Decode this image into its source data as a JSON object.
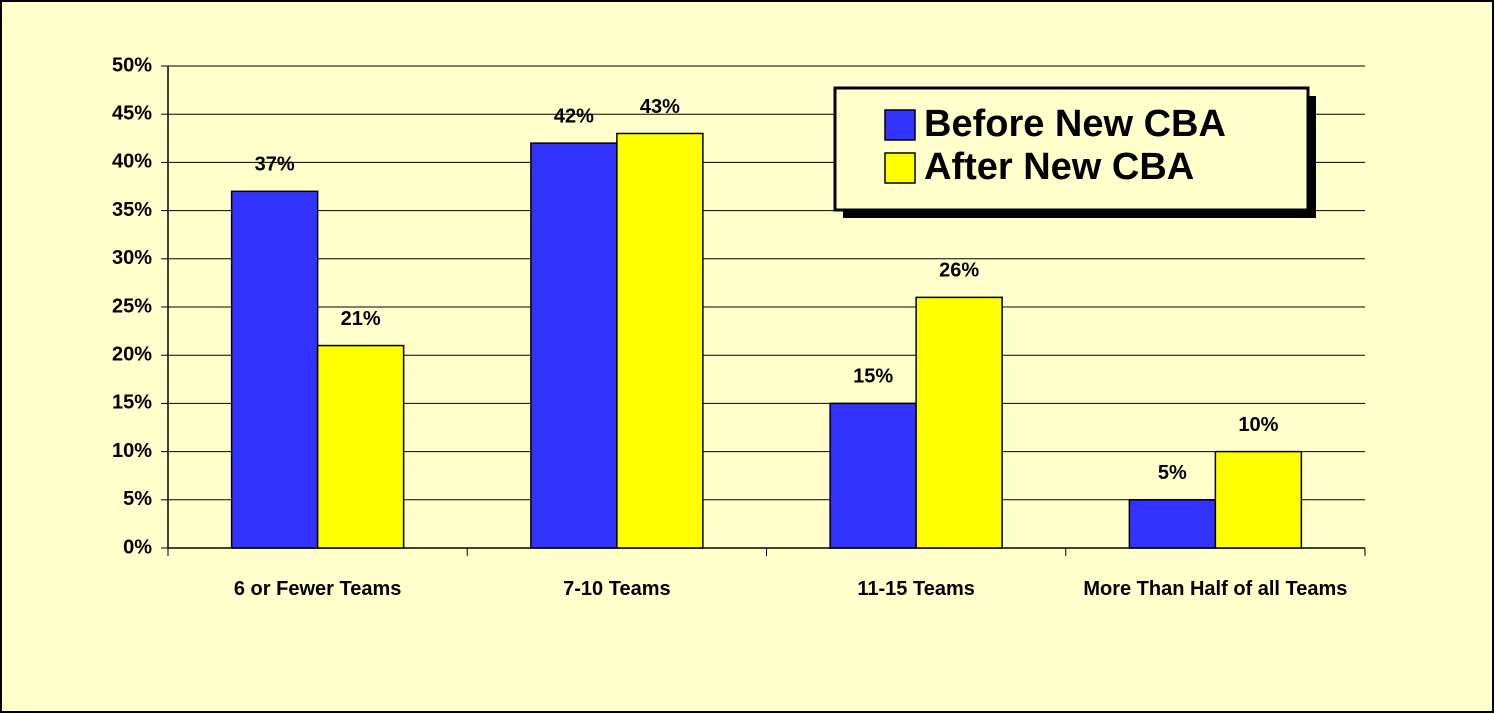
{
  "chart_data": {
    "type": "bar",
    "categories": [
      "6 or Fewer Teams",
      "7-10 Teams",
      "11-15 Teams",
      "More Than Half of all Teams"
    ],
    "series": [
      {
        "name": "Before New CBA",
        "color": "#3333ff",
        "values": [
          37,
          42,
          15,
          5
        ],
        "value_labels": [
          "37%",
          "42%",
          "15%",
          "5%"
        ]
      },
      {
        "name": "After New CBA",
        "color": "#ffff00",
        "values": [
          21,
          43,
          26,
          10
        ],
        "value_labels": [
          "21%",
          "43%",
          "26%",
          "10%"
        ]
      }
    ],
    "ylim": [
      0,
      50
    ],
    "yticks": [
      {
        "value": 0,
        "label": "0%"
      },
      {
        "value": 5,
        "label": "5%"
      },
      {
        "value": 10,
        "label": "10%"
      },
      {
        "value": 15,
        "label": "15%"
      },
      {
        "value": 20,
        "label": "20%"
      },
      {
        "value": 25,
        "label": "25%"
      },
      {
        "value": 30,
        "label": "30%"
      },
      {
        "value": 35,
        "label": "35%"
      },
      {
        "value": 40,
        "label": "40%"
      },
      {
        "value": 45,
        "label": "45%"
      },
      {
        "value": 50,
        "label": "50%"
      }
    ],
    "grid": true,
    "legend": "top-right"
  }
}
